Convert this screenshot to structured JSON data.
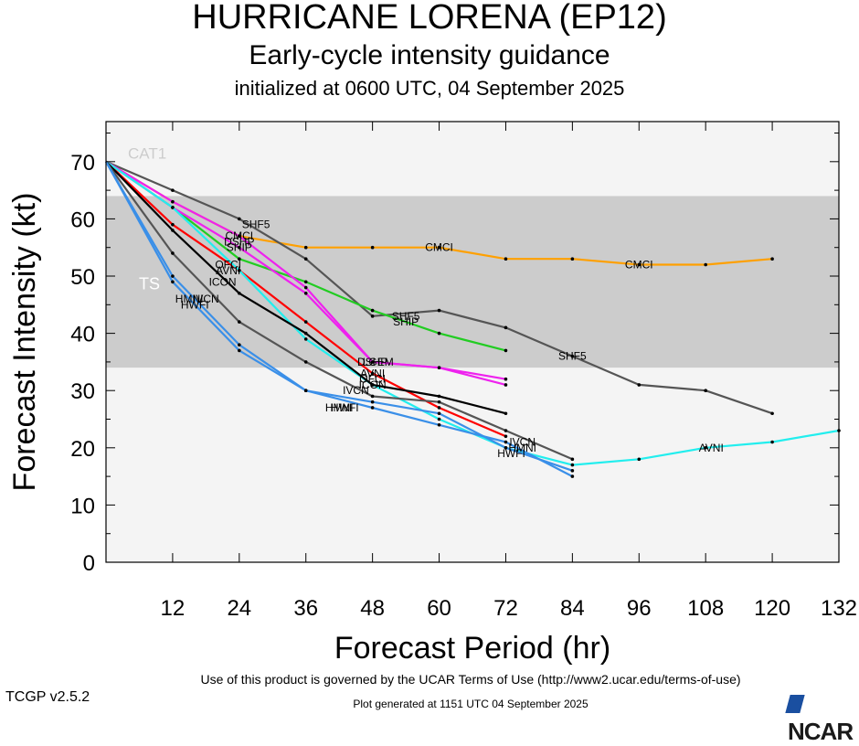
{
  "header": {
    "title": "HURRICANE LORENA (EP12)",
    "subtitle": "Early-cycle intensity guidance",
    "init": "initialized at 0600 UTC, 04 September 2025"
  },
  "footer": {
    "terms": "Use of this product is governed by the UCAR Terms of Use (http://www2.ucar.edu/terms-of-use)",
    "version": "TCGP v2.5.2",
    "generated": "Plot generated at 1151 UTC   04 September 2025",
    "logo": "NCAR"
  },
  "chart_data": {
    "type": "line",
    "title": "HURRICANE LORENA (EP12)",
    "xlabel": "Forecast Period (hr)",
    "ylabel": "Forecast Intensity (kt)",
    "xlim": [
      0,
      132
    ],
    "ylim": [
      0,
      77
    ],
    "x_ticks": [
      12,
      24,
      36,
      48,
      60,
      72,
      84,
      96,
      108,
      120,
      132
    ],
    "y_ticks": [
      0,
      10,
      20,
      30,
      40,
      50,
      60,
      70
    ],
    "bands": [
      {
        "label": "TS",
        "from": 34,
        "to": 64,
        "color": "#cccccc"
      },
      {
        "label": "CAT1",
        "from": 64,
        "to": 77,
        "color": "#f4f4f4"
      }
    ],
    "background_color": "#f4f4f4",
    "series": [
      {
        "name": "CMCI",
        "color": "#ffa000",
        "x": [
          0,
          12,
          24,
          36,
          48,
          60,
          72,
          84,
          96,
          108,
          120
        ],
        "y": [
          70,
          63,
          57,
          55,
          55,
          55,
          53,
          53,
          52,
          52,
          53
        ],
        "labels": [
          [
            24,
            57
          ],
          [
            60,
            55
          ],
          [
            96,
            52
          ]
        ]
      },
      {
        "name": "SHF5",
        "color": "#555555",
        "x": [
          0,
          12,
          24,
          36,
          48,
          60,
          72,
          84,
          96,
          108,
          120
        ],
        "y": [
          70,
          65,
          60,
          53,
          43,
          44,
          41,
          36,
          31,
          30,
          26
        ],
        "labels": [
          [
            27,
            59
          ],
          [
            54,
            43
          ],
          [
            84,
            36
          ]
        ]
      },
      {
        "name": "SHIP",
        "color": "#22cc22",
        "x": [
          0,
          12,
          24,
          36,
          48,
          60,
          72
        ],
        "y": [
          70,
          62,
          53,
          49,
          44,
          40,
          37
        ],
        "labels": [
          [
            24,
            55
          ],
          [
            54,
            42
          ]
        ]
      },
      {
        "name": "DSHP",
        "color": "#ee22ee",
        "x": [
          0,
          12,
          24,
          36,
          48,
          60,
          72
        ],
        "y": [
          70,
          63,
          57,
          48,
          35,
          34,
          32
        ],
        "labels": [
          [
            24,
            56
          ],
          [
            48,
            35
          ]
        ]
      },
      {
        "name": "LGEM",
        "color": "#ee22ee",
        "x": [
          0,
          12,
          24,
          36,
          48,
          60,
          72
        ],
        "y": [
          70,
          62,
          55,
          47,
          35,
          34,
          31
        ],
        "labels": [
          [
            49,
            35
          ]
        ]
      },
      {
        "name": "OFCI",
        "color": "#ff0000",
        "x": [
          0,
          12,
          24,
          36,
          48,
          60,
          72
        ],
        "y": [
          70,
          59,
          51,
          42,
          33,
          27,
          22
        ],
        "labels": [
          [
            22,
            52
          ],
          [
            48,
            32
          ]
        ]
      },
      {
        "name": "AVNI",
        "color": "#22eeee",
        "x": [
          0,
          12,
          24,
          36,
          48,
          60,
          72,
          84,
          96,
          108,
          120,
          132
        ],
        "y": [
          70,
          62,
          51,
          39,
          31,
          25,
          20,
          17,
          18,
          20,
          21,
          23
        ],
        "labels": [
          [
            22,
            51
          ],
          [
            48,
            33
          ],
          [
            109,
            20
          ]
        ]
      },
      {
        "name": "ICON",
        "color": "#000000",
        "x": [
          0,
          12,
          24,
          36,
          48,
          60,
          72
        ],
        "y": [
          70,
          58,
          47,
          40,
          31,
          29,
          26
        ],
        "labels": [
          [
            21,
            49
          ],
          [
            48,
            31
          ]
        ]
      },
      {
        "name": "IVCN",
        "color": "#555555",
        "x": [
          0,
          12,
          24,
          36,
          48,
          60,
          72,
          84
        ],
        "y": [
          70,
          54,
          42,
          35,
          29,
          28,
          23,
          18
        ],
        "labels": [
          [
            18,
            46
          ],
          [
            45,
            30
          ],
          [
            75,
            21
          ]
        ]
      },
      {
        "name": "HWFI",
        "color": "#3a8fe8",
        "x": [
          0,
          12,
          24,
          36,
          48,
          60,
          72,
          84
        ],
        "y": [
          70,
          49,
          37,
          30,
          27,
          24,
          21,
          15
        ],
        "labels": [
          [
            16,
            45
          ],
          [
            43,
            27
          ],
          [
            73,
            19
          ]
        ]
      },
      {
        "name": "HMNI",
        "color": "#3a8fe8",
        "x": [
          0,
          12,
          24,
          36,
          48,
          60,
          72,
          84
        ],
        "y": [
          70,
          50,
          38,
          30,
          28,
          26,
          20,
          16
        ],
        "labels": [
          [
            15,
            46
          ],
          [
            42,
            27
          ],
          [
            75,
            20
          ]
        ]
      }
    ]
  }
}
